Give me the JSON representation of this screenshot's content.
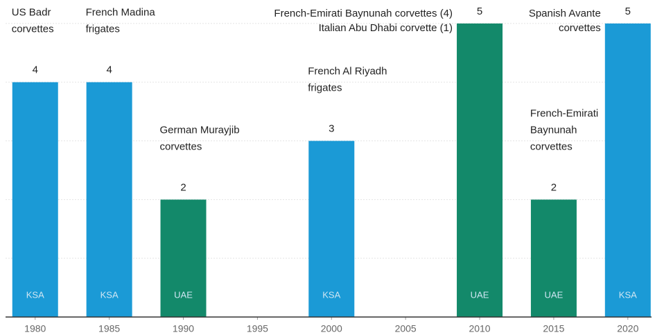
{
  "chart_data": {
    "type": "bar",
    "series": [
      {
        "name": "KSA",
        "color": "#1b9ad6",
        "x": [
          1980,
          1985,
          2000,
          2020
        ],
        "values": [
          4,
          4,
          3,
          5
        ],
        "annotations": [
          [
            "US Badr",
            "corvettes"
          ],
          [
            "French Madina",
            "frigates"
          ],
          [
            "French Al Riyadh",
            "frigates"
          ],
          [
            "Spanish Avante",
            "corvettes"
          ]
        ]
      },
      {
        "name": "UAE",
        "color": "#13896a",
        "x": [
          1990,
          2010,
          2015
        ],
        "values": [
          2,
          5,
          2
        ],
        "annotations": [
          [
            "German Murayjib",
            "corvettes"
          ],
          [
            "French-Emirati Baynunah corvettes (4)",
            "Italian Abu Dhabi corvette (1)"
          ],
          [
            "French-Emirati",
            "Baynunah",
            "corvettes"
          ]
        ]
      }
    ],
    "xlim": [
      1978,
      2021.6
    ],
    "xticks": [
      1980,
      1985,
      1990,
      1995,
      2000,
      2005,
      2010,
      2015,
      2020
    ],
    "ylim": [
      0,
      5.4
    ],
    "yticks": [
      1,
      2,
      3,
      4,
      5
    ],
    "grid": true
  }
}
